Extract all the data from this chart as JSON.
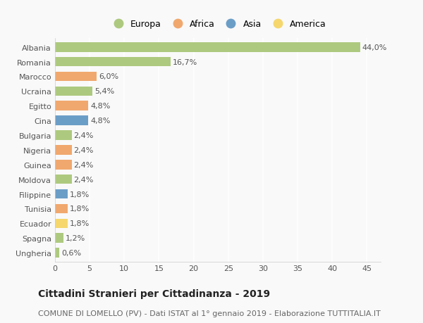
{
  "categories": [
    "Albania",
    "Romania",
    "Marocco",
    "Ucraina",
    "Egitto",
    "Cina",
    "Bulgaria",
    "Nigeria",
    "Guinea",
    "Moldova",
    "Filippine",
    "Tunisia",
    "Ecuador",
    "Spagna",
    "Ungheria"
  ],
  "values": [
    44.0,
    16.7,
    6.0,
    5.4,
    4.8,
    4.8,
    2.4,
    2.4,
    2.4,
    2.4,
    1.8,
    1.8,
    1.8,
    1.2,
    0.6
  ],
  "labels": [
    "44,0%",
    "16,7%",
    "6,0%",
    "5,4%",
    "4,8%",
    "4,8%",
    "2,4%",
    "2,4%",
    "2,4%",
    "2,4%",
    "1,8%",
    "1,8%",
    "1,8%",
    "1,2%",
    "0,6%"
  ],
  "continents": [
    "Europa",
    "Europa",
    "Africa",
    "Europa",
    "Africa",
    "Asia",
    "Europa",
    "Africa",
    "Africa",
    "Europa",
    "Asia",
    "Africa",
    "America",
    "Europa",
    "Europa"
  ],
  "colors": {
    "Europa": "#adc97f",
    "Africa": "#f0a86e",
    "Asia": "#6b9ec7",
    "America": "#f5d76e"
  },
  "legend_order": [
    "Europa",
    "Africa",
    "Asia",
    "America"
  ],
  "xlim": [
    0,
    47
  ],
  "xticks": [
    0,
    5,
    10,
    15,
    20,
    25,
    30,
    35,
    40,
    45
  ],
  "title": "Cittadini Stranieri per Cittadinanza - 2019",
  "subtitle": "COMUNE DI LOMELLO (PV) - Dati ISTAT al 1° gennaio 2019 - Elaborazione TUTTITALIA.IT",
  "bg_color": "#f9f9f9",
  "grid_color": "#ffffff",
  "bar_height": 0.65,
  "title_fontsize": 10,
  "subtitle_fontsize": 8,
  "label_fontsize": 8,
  "tick_fontsize": 8,
  "legend_fontsize": 9
}
